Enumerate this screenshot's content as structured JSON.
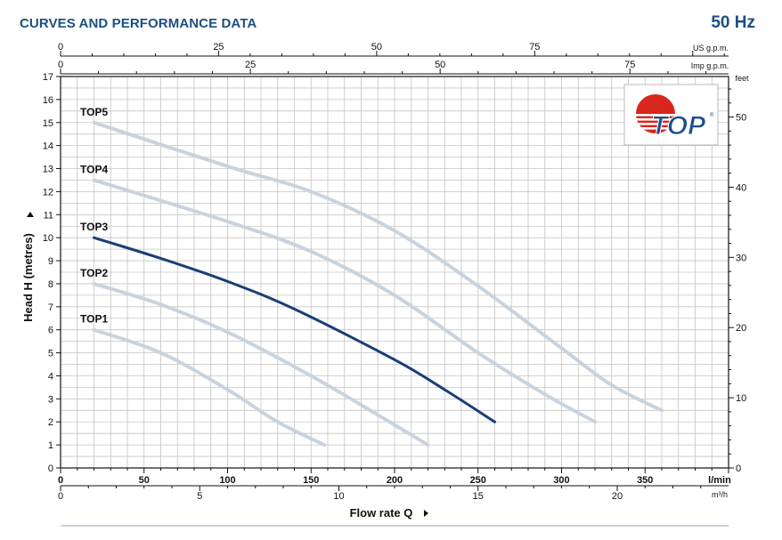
{
  "header": {
    "title": "CURVES AND PERFORMANCE DATA",
    "frequency": "50 Hz"
  },
  "logo": {
    "text": "TOP",
    "reg": "®"
  },
  "colors": {
    "title": "#1d4f82",
    "highlight": "#1a3f74",
    "curve": "#c9d3de",
    "logo_red": "#d9261c",
    "logo_blue": "#1a4d8f"
  },
  "chart_data": {
    "type": "line",
    "title": "CURVES AND PERFORMANCE DATA",
    "xlabel": "Flow rate Q",
    "ylabel": "Head H (metres)",
    "xlim": [
      0,
      400
    ],
    "ylim": [
      0,
      17
    ],
    "x_unit": "l/min",
    "y_ticks": [
      0,
      1,
      2,
      3,
      4,
      5,
      6,
      7,
      8,
      9,
      10,
      11,
      12,
      13,
      14,
      15,
      16,
      17
    ],
    "x_ticks": [
      0,
      50,
      100,
      150,
      200,
      250,
      300,
      350
    ],
    "secondary_axes": {
      "feet": {
        "unit": "feet",
        "ticks": [
          0,
          10,
          20,
          30,
          40,
          50
        ],
        "per_metre": 3.2808
      },
      "m3h": {
        "unit": "m³/h",
        "ticks": [
          0,
          5,
          10,
          15,
          20
        ],
        "lpm_per_unit": 16.6667
      },
      "us_gpm": {
        "unit": "US g.p.m.",
        "ticks": [
          0,
          25,
          50,
          75
        ],
        "lpm_per_unit": 3.7854
      },
      "imp_gpm": {
        "unit": "Imp g.p.m.",
        "ticks": [
          0,
          25,
          50,
          75
        ],
        "lpm_per_unit": 4.5461
      }
    },
    "series": [
      {
        "name": "TOP1",
        "highlight": false,
        "x": [
          20,
          60,
          100,
          130,
          158
        ],
        "y": [
          6,
          5,
          3.4,
          2.0,
          1.0
        ]
      },
      {
        "name": "TOP2",
        "highlight": false,
        "x": [
          20,
          60,
          100,
          150,
          190,
          220
        ],
        "y": [
          8,
          7.1,
          5.9,
          4,
          2.3,
          1.0
        ]
      },
      {
        "name": "TOP3",
        "highlight": true,
        "x": [
          20,
          60,
          100,
          140,
          200,
          230,
          260
        ],
        "y": [
          10,
          9.1,
          8.1,
          6.9,
          4.7,
          3.4,
          2.0
        ]
      },
      {
        "name": "TOP4",
        "highlight": false,
        "x": [
          20,
          100,
          150,
          200,
          250,
          290,
          320
        ],
        "y": [
          12.5,
          10.7,
          9.4,
          7.5,
          5.0,
          3.2,
          2.0
        ]
      },
      {
        "name": "TOP5",
        "highlight": false,
        "x": [
          20,
          100,
          150,
          200,
          250,
          300,
          330,
          360
        ],
        "y": [
          15,
          13.1,
          12,
          10.3,
          7.9,
          5.2,
          3.6,
          2.5
        ]
      }
    ]
  }
}
